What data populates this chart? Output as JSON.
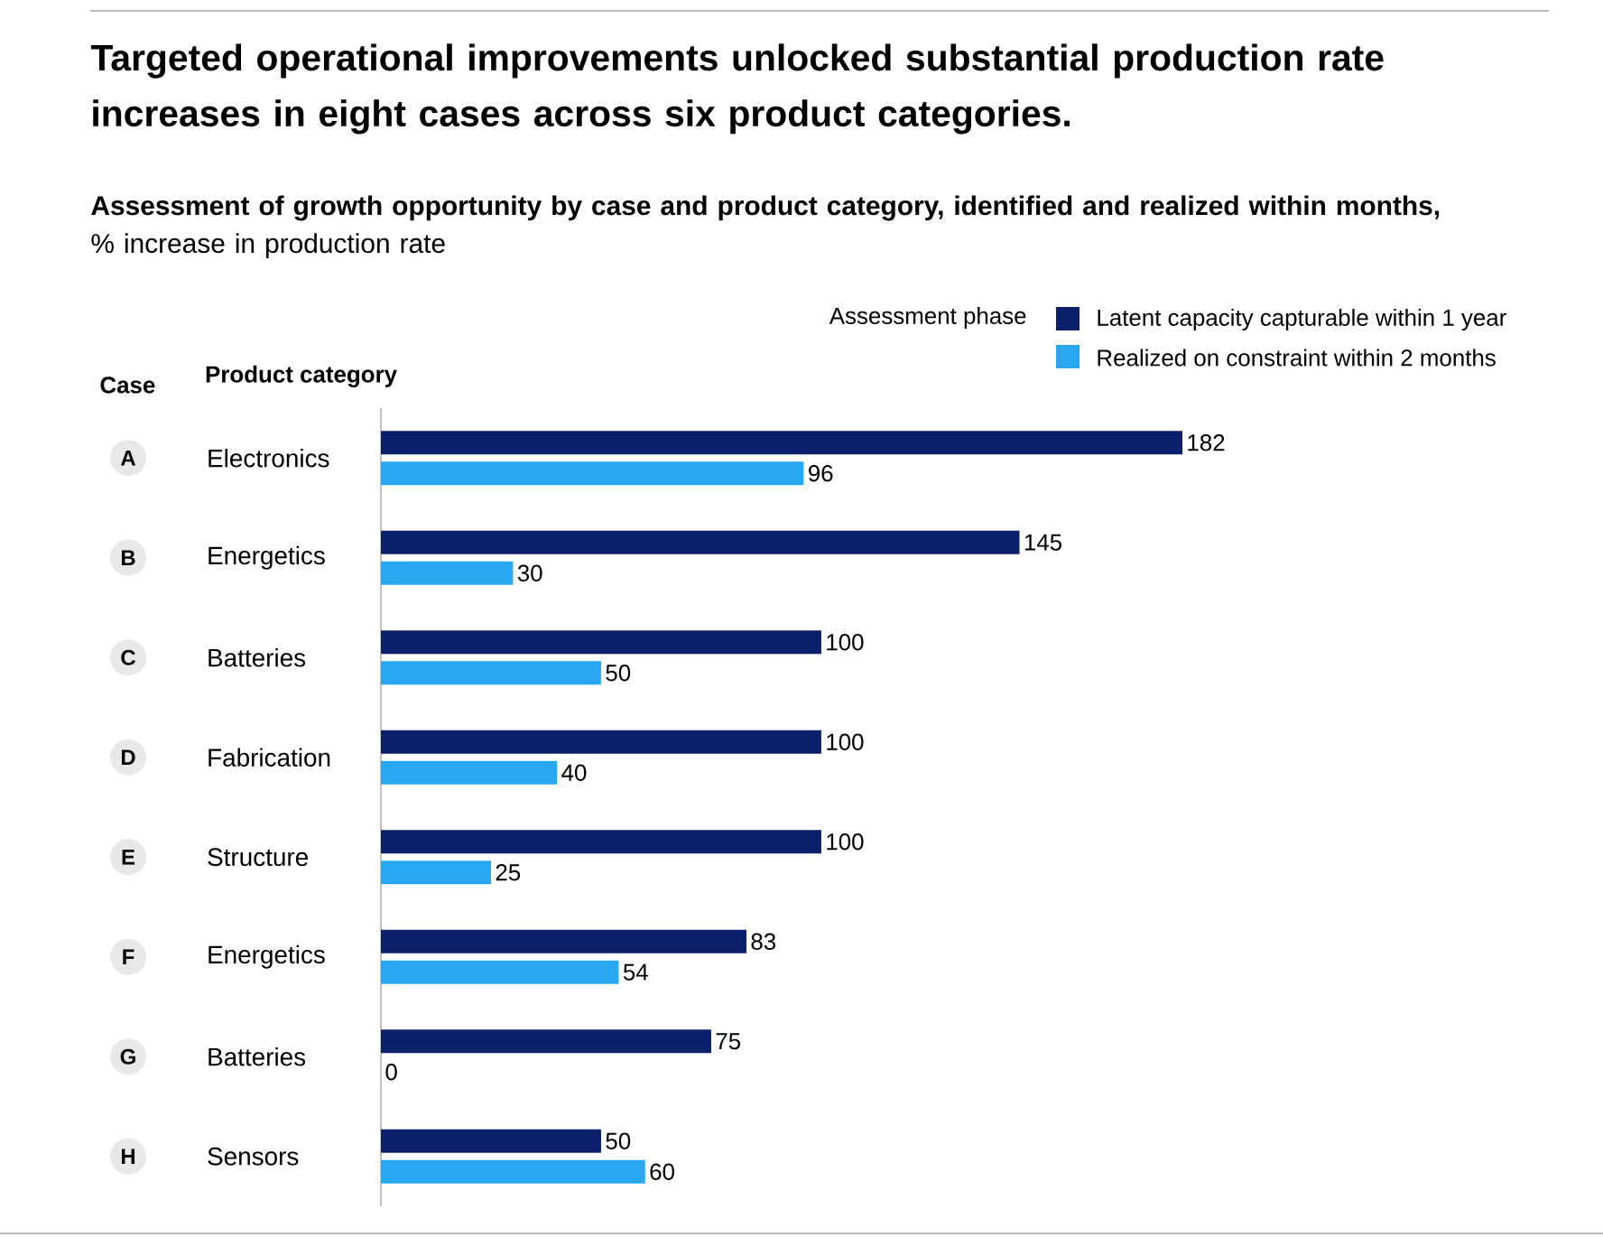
{
  "chart_data": {
    "type": "bar",
    "orientation": "horizontal",
    "title": "Targeted operational improvements unlocked substantial production rate increases in eight cases across six product categories.",
    "subtitle": "**Assessment of growth opportunity by case and product category, identified and realized within months,** % increase in production rate",
    "ylabel": "Product category",
    "legend_title": "Assessment phase",
    "legend": "top right",
    "data_labels": true,
    "categories": [
      "Electronics",
      "Energetics",
      "Batteries",
      "Fabrication",
      "Structure",
      "Energetics",
      "Batteries",
      "Sensors"
    ],
    "series": [
      {
        "name": "Latent capacity capturable within 1 year",
        "color": "#0b1f6b",
        "values": [
          182,
          145,
          100,
          100,
          100,
          83,
          75,
          50
        ]
      },
      {
        "name": "Realized on constraint within 2 months",
        "color": "#28a8f2",
        "values": [
          96,
          30,
          50,
          40,
          25,
          54,
          0,
          60
        ]
      }
    ],
    "annotations": [
      "Case",
      "A",
      "B",
      "C",
      "D",
      "E",
      "F",
      "G",
      "H"
    ]
  }
}
